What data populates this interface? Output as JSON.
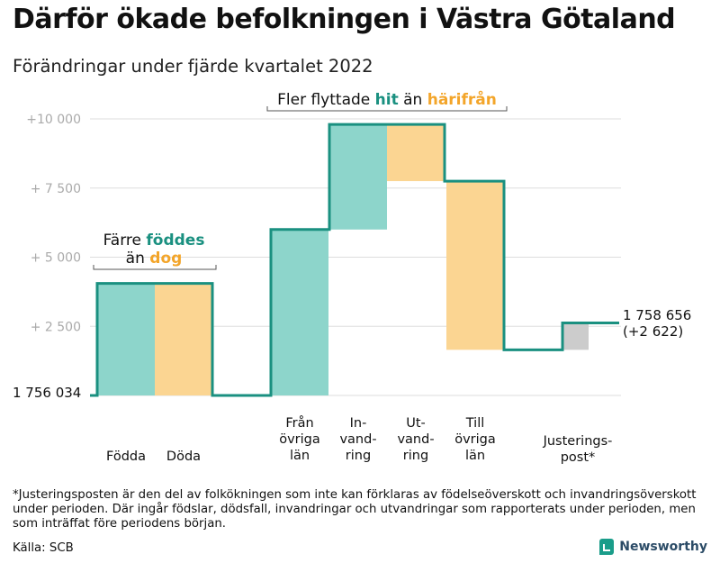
{
  "title": "Därför ökade befolkningen i Västra Götaland",
  "subtitle": "Förändringar under fjärde kvartalet 2022",
  "footnote": "*Justeringsposten är den del av folkökningen som inte kan förklaras av födelseöverskott och invandringsöverskott under perioden. Där ingår födslar, dödsfall, invandringar och utvandringar som rapporterats under perioden, men som inträffat före periodens början.",
  "source": "Källa: SCB",
  "brand": "Newsworthy",
  "colors": {
    "teal_fill": "#8dd5cb",
    "orange_fill": "#fbd592",
    "gray_fill": "#cccccc",
    "line": "#1a9080",
    "accent_teal": "#1a9080",
    "accent_orange": "#f3a52a",
    "grid": "#dddddd",
    "tick_text": "#aaaaaa"
  },
  "annotations": {
    "birth_death": {
      "line1_prefix": "Färre ",
      "line1_highlight": "föddes",
      "line2_prefix": "än ",
      "line2_highlight": "dog"
    },
    "migration": {
      "prefix": "Fler flyttade ",
      "highlight1": "hit",
      "middle": " än ",
      "highlight2": "härifrån"
    }
  },
  "chart_data": {
    "type": "bar",
    "subtype": "waterfall",
    "baseline_label": "1 756 034",
    "end_label_line1": "1 758 656",
    "end_label_line2": "(+2 622)",
    "y_ticks": [
      "+10 000",
      "+ 7 500",
      "+ 5 000",
      "+ 2 500"
    ],
    "y_tick_values": [
      10000,
      7500,
      5000,
      2500
    ],
    "ylim": [
      0,
      10000
    ],
    "grid": true,
    "items": [
      {
        "label": [
          "Födda"
        ],
        "start": 0,
        "end": 4050,
        "kind": "increase"
      },
      {
        "label": [
          "Döda"
        ],
        "start": 4050,
        "end": 0,
        "kind": "decrease"
      },
      {
        "label": [
          "Från",
          "övriga",
          "län"
        ],
        "start": 0,
        "end": 6000,
        "kind": "increase"
      },
      {
        "label": [
          "In-",
          "vand-",
          "ring"
        ],
        "start": 6000,
        "end": 9800,
        "kind": "increase"
      },
      {
        "label": [
          "Ut-",
          "vand-",
          "ring"
        ],
        "start": 9800,
        "end": 7750,
        "kind": "decrease"
      },
      {
        "label": [
          "Till",
          "övriga",
          "län"
        ],
        "start": 7750,
        "end": 1650,
        "kind": "decrease"
      },
      {
        "label": [
          "Justerings-",
          "post*"
        ],
        "start": 1650,
        "end": 2622,
        "kind": "adjust"
      }
    ]
  }
}
